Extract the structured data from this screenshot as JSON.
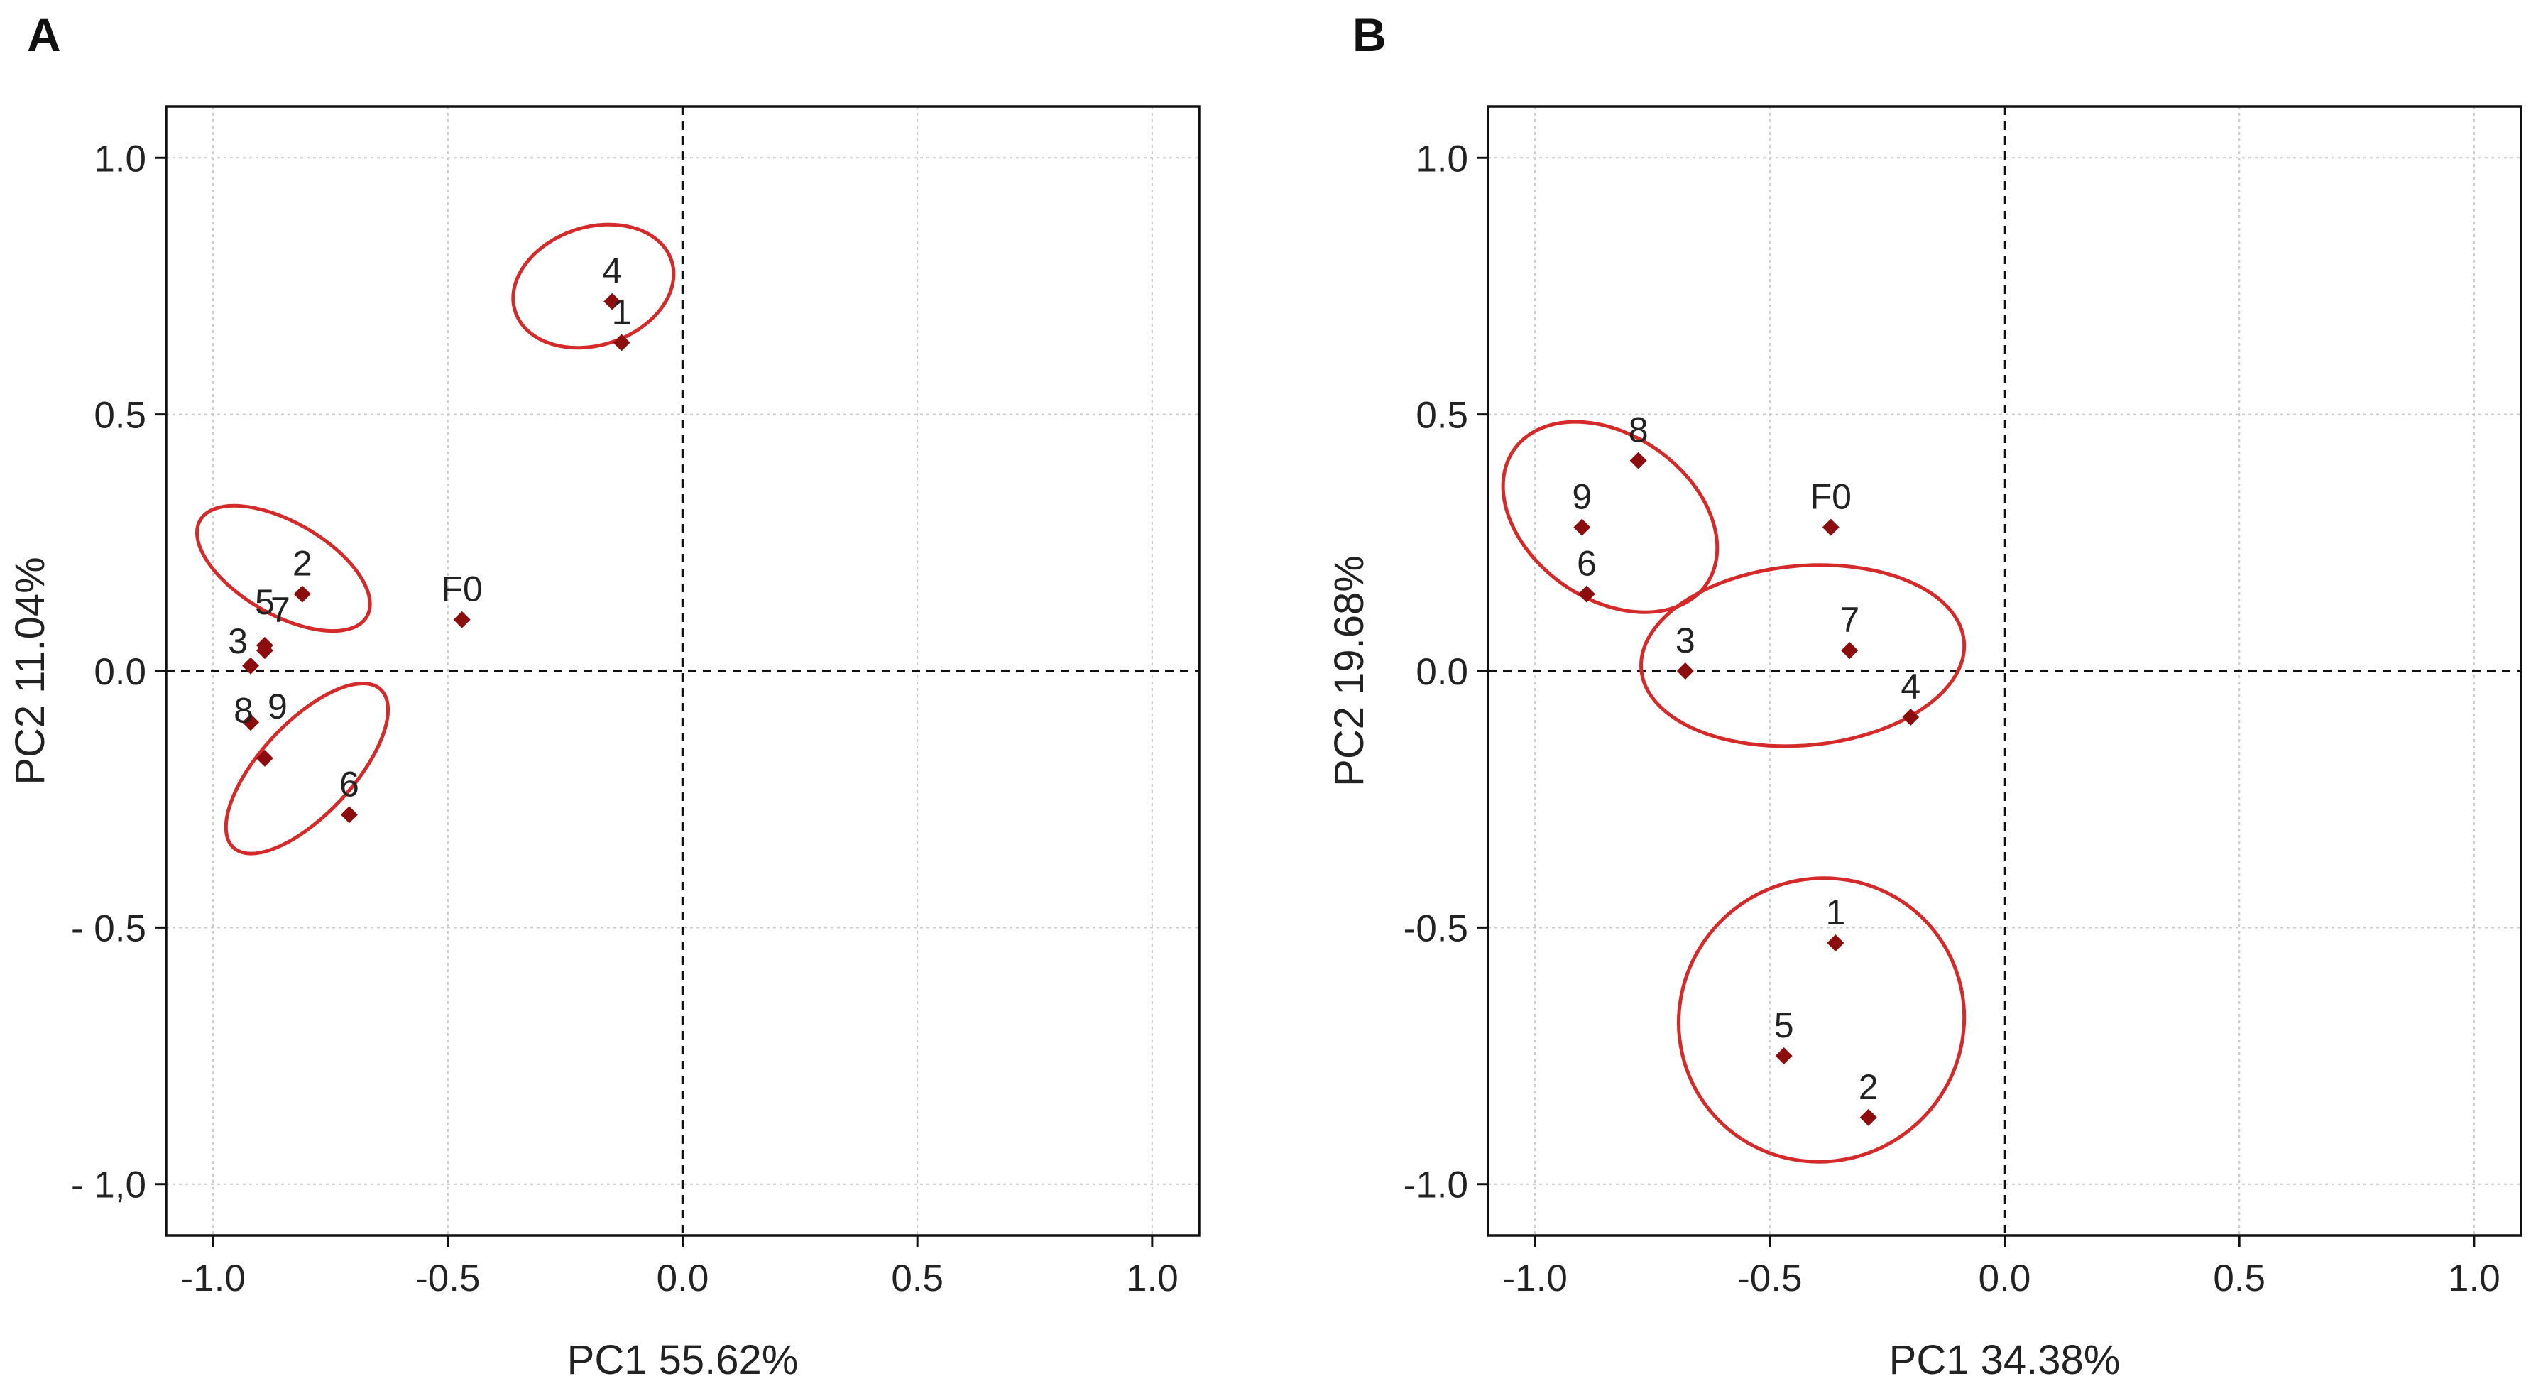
{
  "figure_type": "PCA score plots",
  "colors": {
    "marker": "#8b0d0d",
    "ellipse": "#d42a2a",
    "axis": "#111111",
    "grid": "#c9c9c9"
  },
  "chart_data": [
    {
      "type": "scatter",
      "panel_label": "A",
      "xlabel": "PC1 55.62%",
      "ylabel": "PC2 11.04%",
      "xlim": [
        -1.1,
        1.1
      ],
      "ylim": [
        -1.1,
        1.1
      ],
      "grid": true,
      "zero_lines": true,
      "xticks": [
        -1.0,
        -0.5,
        0.0,
        0.5,
        1.0
      ],
      "xtick_labels": [
        "-1.0",
        "-0.5",
        "0.0",
        "0.5",
        "1.0"
      ],
      "yticks": [
        1.0,
        0.5,
        0.0,
        -0.5,
        -1.0
      ],
      "ytick_labels": [
        "1.0",
        "0.5",
        "0.0",
        "- 0.5",
        "- 1,0"
      ],
      "points": [
        {
          "label": "4",
          "x": -0.15,
          "y": 0.72
        },
        {
          "label": "1",
          "x": -0.13,
          "y": 0.64
        },
        {
          "label": "2",
          "x": -0.81,
          "y": 0.15
        },
        {
          "label": "F0",
          "x": -0.47,
          "y": 0.1
        },
        {
          "label": "5",
          "x": -0.89,
          "y": 0.05
        },
        {
          "label": "7",
          "x": -0.89,
          "y": 0.04
        },
        {
          "label": "3",
          "x": -0.92,
          "y": 0.01
        },
        {
          "label": "8",
          "x": -0.92,
          "y": -0.1
        },
        {
          "label": "9",
          "x": -0.89,
          "y": -0.17
        },
        {
          "label": "6",
          "x": -0.71,
          "y": -0.28
        }
      ],
      "groups": [
        {
          "members": [
            "4",
            "1"
          ],
          "cx": -0.19,
          "cy": 0.75,
          "rx": 0.175,
          "ry": 0.115,
          "angle_deg": 18
        },
        {
          "members": [
            "2",
            "5",
            "7",
            "3"
          ],
          "cx": -0.85,
          "cy": 0.2,
          "rx": 0.205,
          "ry": 0.09,
          "angle_deg": -30
        },
        {
          "members": [
            "8",
            "9",
            "6"
          ],
          "cx": -0.8,
          "cy": -0.19,
          "rx": 0.23,
          "ry": 0.09,
          "angle_deg": 47
        }
      ]
    },
    {
      "type": "scatter",
      "panel_label": "B",
      "xlabel": "PC1 34.38%",
      "ylabel": "PC2 19.68%",
      "xlim": [
        -1.1,
        1.1
      ],
      "ylim": [
        -1.1,
        1.1
      ],
      "grid": true,
      "zero_lines": true,
      "xticks": [
        -1.0,
        -0.5,
        0.0,
        0.5,
        1.0
      ],
      "xtick_labels": [
        "-1.0",
        "-0.5",
        "0.0",
        "0.5",
        "1.0"
      ],
      "yticks": [
        1.0,
        0.5,
        0.0,
        -0.5,
        -1.0
      ],
      "ytick_labels": [
        "1.0",
        "0.5",
        "0.0",
        "-0.5",
        "-1.0"
      ],
      "points": [
        {
          "label": "8",
          "x": -0.78,
          "y": 0.41
        },
        {
          "label": "9",
          "x": -0.9,
          "y": 0.28
        },
        {
          "label": "F0",
          "x": -0.37,
          "y": 0.28
        },
        {
          "label": "6",
          "x": -0.89,
          "y": 0.15
        },
        {
          "label": "7",
          "x": -0.33,
          "y": 0.04
        },
        {
          "label": "3",
          "x": -0.68,
          "y": 0.0
        },
        {
          "label": "4",
          "x": -0.2,
          "y": -0.09
        },
        {
          "label": "1",
          "x": -0.36,
          "y": -0.53
        },
        {
          "label": "5",
          "x": -0.47,
          "y": -0.75
        },
        {
          "label": "2",
          "x": -0.29,
          "y": -0.87
        }
      ],
      "groups": [
        {
          "members": [
            "8",
            "9",
            "6"
          ],
          "cx": -0.84,
          "cy": 0.3,
          "rx": 0.25,
          "ry": 0.16,
          "angle_deg": -35
        },
        {
          "members": [
            "3",
            "7",
            "4"
          ],
          "cx": -0.43,
          "cy": 0.03,
          "rx": 0.345,
          "ry": 0.175,
          "angle_deg": 5
        },
        {
          "members": [
            "1",
            "5",
            "2"
          ],
          "cx": -0.39,
          "cy": -0.68,
          "rx": 0.3,
          "ry": 0.28,
          "angle_deg": -55
        }
      ]
    }
  ]
}
